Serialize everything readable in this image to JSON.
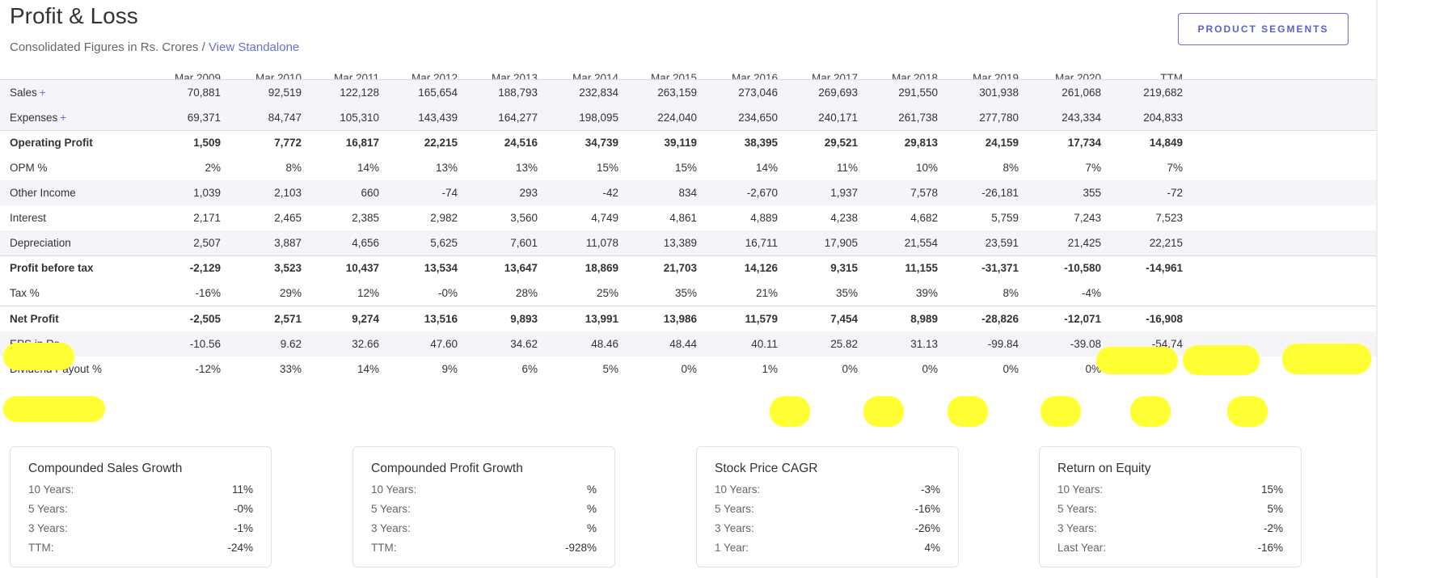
{
  "header": {
    "title": "Profit & Loss",
    "subtitle_prefix": "Consolidated Figures in Rs. Crores /",
    "view_link": "View Standalone",
    "segments_button": "PRODUCT SEGMENTS"
  },
  "table": {
    "columns": [
      "Mar 2009",
      "Mar 2010",
      "Mar 2011",
      "Mar 2012",
      "Mar 2013",
      "Mar 2014",
      "Mar 2015",
      "Mar 2016",
      "Mar 2017",
      "Mar 2018",
      "Mar 2019",
      "Mar 2020",
      "TTM"
    ],
    "rows": [
      {
        "label": "Sales",
        "plus": "+",
        "values": [
          "70,881",
          "92,519",
          "122,128",
          "165,654",
          "188,793",
          "232,834",
          "263,159",
          "273,046",
          "269,693",
          "291,550",
          "301,938",
          "261,068",
          "219,682"
        ]
      },
      {
        "label": "Expenses",
        "plus": "+",
        "values": [
          "69,371",
          "84,747",
          "105,310",
          "143,439",
          "164,277",
          "198,095",
          "224,040",
          "234,650",
          "240,171",
          "261,738",
          "277,780",
          "243,334",
          "204,833"
        ]
      },
      {
        "label": "Operating Profit",
        "values": [
          "1,509",
          "7,772",
          "16,817",
          "22,215",
          "24,516",
          "34,739",
          "39,119",
          "38,395",
          "29,521",
          "29,813",
          "24,159",
          "17,734",
          "14,849"
        ]
      },
      {
        "label": "OPM %",
        "values": [
          "2%",
          "8%",
          "14%",
          "13%",
          "13%",
          "15%",
          "15%",
          "14%",
          "11%",
          "10%",
          "8%",
          "7%",
          "7%"
        ]
      },
      {
        "label": "Other Income",
        "values": [
          "1,039",
          "2,103",
          "660",
          "-74",
          "293",
          "-42",
          "834",
          "-2,670",
          "1,937",
          "7,578",
          "-26,181",
          "355",
          "-72"
        ]
      },
      {
        "label": "Interest",
        "values": [
          "2,171",
          "2,465",
          "2,385",
          "2,982",
          "3,560",
          "4,749",
          "4,861",
          "4,889",
          "4,238",
          "4,682",
          "5,759",
          "7,243",
          "7,523"
        ]
      },
      {
        "label": "Depreciation",
        "values": [
          "2,507",
          "3,887",
          "4,656",
          "5,625",
          "7,601",
          "11,078",
          "13,389",
          "16,711",
          "17,905",
          "21,554",
          "23,591",
          "21,425",
          "22,215"
        ]
      },
      {
        "label": "Profit before tax",
        "values": [
          "-2,129",
          "3,523",
          "10,437",
          "13,534",
          "13,647",
          "18,869",
          "21,703",
          "14,126",
          "9,315",
          "11,155",
          "-31,371",
          "-10,580",
          "-14,961"
        ]
      },
      {
        "label": "Tax %",
        "values": [
          "-16%",
          "29%",
          "12%",
          "-0%",
          "28%",
          "25%",
          "35%",
          "21%",
          "35%",
          "39%",
          "8%",
          "-4%",
          ""
        ]
      },
      {
        "label": "Net Profit",
        "values": [
          "-2,505",
          "2,571",
          "9,274",
          "13,516",
          "9,893",
          "13,991",
          "13,986",
          "11,579",
          "7,454",
          "8,989",
          "-28,826",
          "-12,071",
          "-16,908"
        ]
      },
      {
        "label": "EPS in Rs",
        "values": [
          "-10.56",
          "9.62",
          "32.66",
          "47.60",
          "34.62",
          "48.46",
          "48.44",
          "40.11",
          "25.82",
          "31.13",
          "-99.84",
          "-39.08",
          "-54.74"
        ]
      },
      {
        "label": "Dividend Payout %",
        "values": [
          "-12%",
          "33%",
          "14%",
          "9%",
          "6%",
          "5%",
          "0%",
          "1%",
          "0%",
          "0%",
          "0%",
          "0%",
          ""
        ]
      }
    ]
  },
  "highlight_color": "#ffff33",
  "cards": [
    {
      "title": "Compounded Sales Growth",
      "rows": [
        {
          "k": "10 Years:",
          "v": "11%"
        },
        {
          "k": "5 Years:",
          "v": "-0%"
        },
        {
          "k": "3 Years:",
          "v": "-1%"
        },
        {
          "k": "TTM:",
          "v": "-24%"
        }
      ]
    },
    {
      "title": "Compounded Profit Growth",
      "rows": [
        {
          "k": "10 Years:",
          "v": "%"
        },
        {
          "k": "5 Years:",
          "v": "%"
        },
        {
          "k": "3 Years:",
          "v": "%"
        },
        {
          "k": "TTM:",
          "v": "-928%"
        }
      ]
    },
    {
      "title": "Stock Price CAGR",
      "rows": [
        {
          "k": "10 Years:",
          "v": "-3%"
        },
        {
          "k": "5 Years:",
          "v": "-16%"
        },
        {
          "k": "3 Years:",
          "v": "-26%"
        },
        {
          "k": "1 Year:",
          "v": "4%"
        }
      ]
    },
    {
      "title": "Return on Equity",
      "rows": [
        {
          "k": "10 Years:",
          "v": "15%"
        },
        {
          "k": "5 Years:",
          "v": "5%"
        },
        {
          "k": "3 Years:",
          "v": "-2%"
        },
        {
          "k": "Last Year:",
          "v": "-16%"
        }
      ]
    }
  ]
}
